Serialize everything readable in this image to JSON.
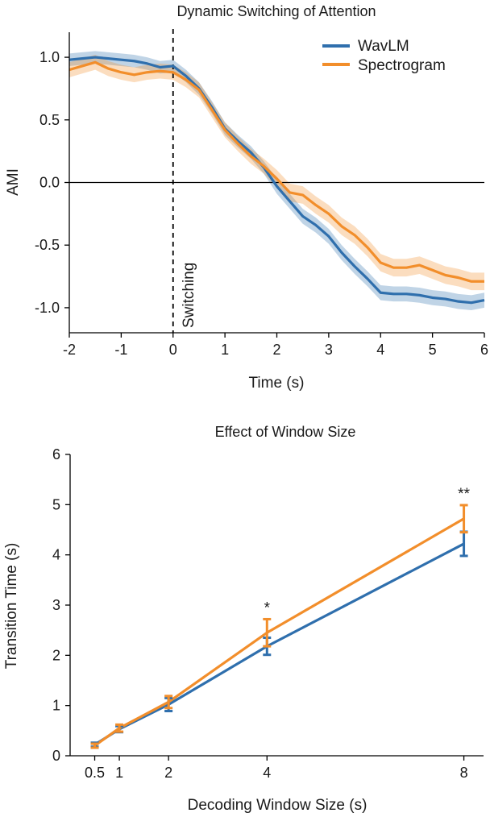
{
  "chart_data": [
    {
      "type": "line",
      "title": "Dynamic Switching of Attention",
      "xlabel": "Time (s)",
      "ylabel": "AMI",
      "xlim": [
        -2,
        6
      ],
      "ylim": [
        -1.2,
        1.2
      ],
      "xticks": [
        -2,
        -1,
        0,
        1,
        2,
        3,
        4,
        5,
        6
      ],
      "xtick_labels": [
        "-2",
        "-1",
        "0",
        "1",
        "2",
        "3",
        "4",
        "5",
        "6"
      ],
      "yticks": [
        1.0,
        0.5,
        0.0,
        -0.5,
        -1.0
      ],
      "ytick_labels": [
        "1.0",
        "0.5",
        "0.0",
        "-0.5",
        "-1.0"
      ],
      "annotation": "Switching",
      "switch_time": 0,
      "legend_position": "top-right",
      "x": [
        -2,
        -1.75,
        -1.5,
        -1.25,
        -1,
        -0.75,
        -0.5,
        -0.25,
        0,
        0.25,
        0.5,
        0.75,
        1,
        1.25,
        1.5,
        1.75,
        2,
        2.25,
        2.5,
        2.75,
        3,
        3.25,
        3.5,
        3.75,
        4,
        4.25,
        4.5,
        4.75,
        5,
        5.25,
        5.5,
        5.75,
        6
      ],
      "series": [
        {
          "name": "WavLM",
          "color": "#2f6fad",
          "values": [
            0.98,
            0.99,
            1.0,
            0.99,
            0.98,
            0.97,
            0.95,
            0.92,
            0.93,
            0.85,
            0.75,
            0.6,
            0.43,
            0.33,
            0.24,
            0.12,
            -0.03,
            -0.15,
            -0.27,
            -0.34,
            -0.43,
            -0.56,
            -0.67,
            -0.77,
            -0.88,
            -0.89,
            -0.89,
            -0.9,
            -0.92,
            -0.93,
            -0.95,
            -0.96,
            -0.94
          ],
          "band": [
            0.05,
            0.05,
            0.05,
            0.05,
            0.05,
            0.05,
            0.05,
            0.05,
            0.05,
            0.05,
            0.05,
            0.05,
            0.05,
            0.05,
            0.05,
            0.05,
            0.06,
            0.06,
            0.06,
            0.06,
            0.06,
            0.06,
            0.06,
            0.06,
            0.06,
            0.06,
            0.06,
            0.06,
            0.06,
            0.06,
            0.06,
            0.06,
            0.06
          ]
        },
        {
          "name": "Spectrogram",
          "color": "#f28e2b",
          "values": [
            0.9,
            0.93,
            0.96,
            0.91,
            0.88,
            0.86,
            0.88,
            0.89,
            0.88,
            0.82,
            0.74,
            0.58,
            0.42,
            0.31,
            0.21,
            0.13,
            0.03,
            -0.08,
            -0.1,
            -0.18,
            -0.25,
            -0.35,
            -0.42,
            -0.52,
            -0.64,
            -0.68,
            -0.68,
            -0.66,
            -0.7,
            -0.74,
            -0.76,
            -0.79,
            -0.79
          ],
          "band": [
            0.06,
            0.06,
            0.06,
            0.06,
            0.06,
            0.06,
            0.06,
            0.06,
            0.06,
            0.06,
            0.06,
            0.06,
            0.06,
            0.06,
            0.06,
            0.06,
            0.07,
            0.07,
            0.07,
            0.07,
            0.07,
            0.07,
            0.07,
            0.07,
            0.07,
            0.07,
            0.07,
            0.07,
            0.07,
            0.07,
            0.07,
            0.07,
            0.07
          ]
        }
      ]
    },
    {
      "type": "line",
      "title": "Effect of Window Size",
      "xlabel": "Decoding Window Size (s)",
      "ylabel": "Transition Time (s)",
      "xlim": [
        0,
        8.4
      ],
      "ylim": [
        0,
        6
      ],
      "xticks": [
        0.5,
        1,
        2,
        4,
        8
      ],
      "xtick_labels": [
        "0.5",
        "1",
        "2",
        "4",
        "8"
      ],
      "yticks": [
        0,
        1,
        2,
        3,
        4,
        5,
        6
      ],
      "ytick_labels": [
        "0",
        "1",
        "2",
        "3",
        "4",
        "5",
        "6"
      ],
      "x": [
        0.5,
        1,
        2,
        4,
        8
      ],
      "series": [
        {
          "name": "WavLM",
          "color": "#2f6fad",
          "values": [
            0.22,
            0.53,
            1.02,
            2.18,
            4.22
          ],
          "errors": [
            0.04,
            0.06,
            0.13,
            0.17,
            0.24
          ]
        },
        {
          "name": "Spectrogram",
          "color": "#f28e2b",
          "values": [
            0.2,
            0.55,
            1.07,
            2.45,
            4.72
          ],
          "errors": [
            0.04,
            0.07,
            0.12,
            0.27,
            0.27
          ]
        }
      ],
      "significance": [
        {
          "x": 4,
          "label": "*"
        },
        {
          "x": 8,
          "label": "**"
        }
      ]
    }
  ]
}
